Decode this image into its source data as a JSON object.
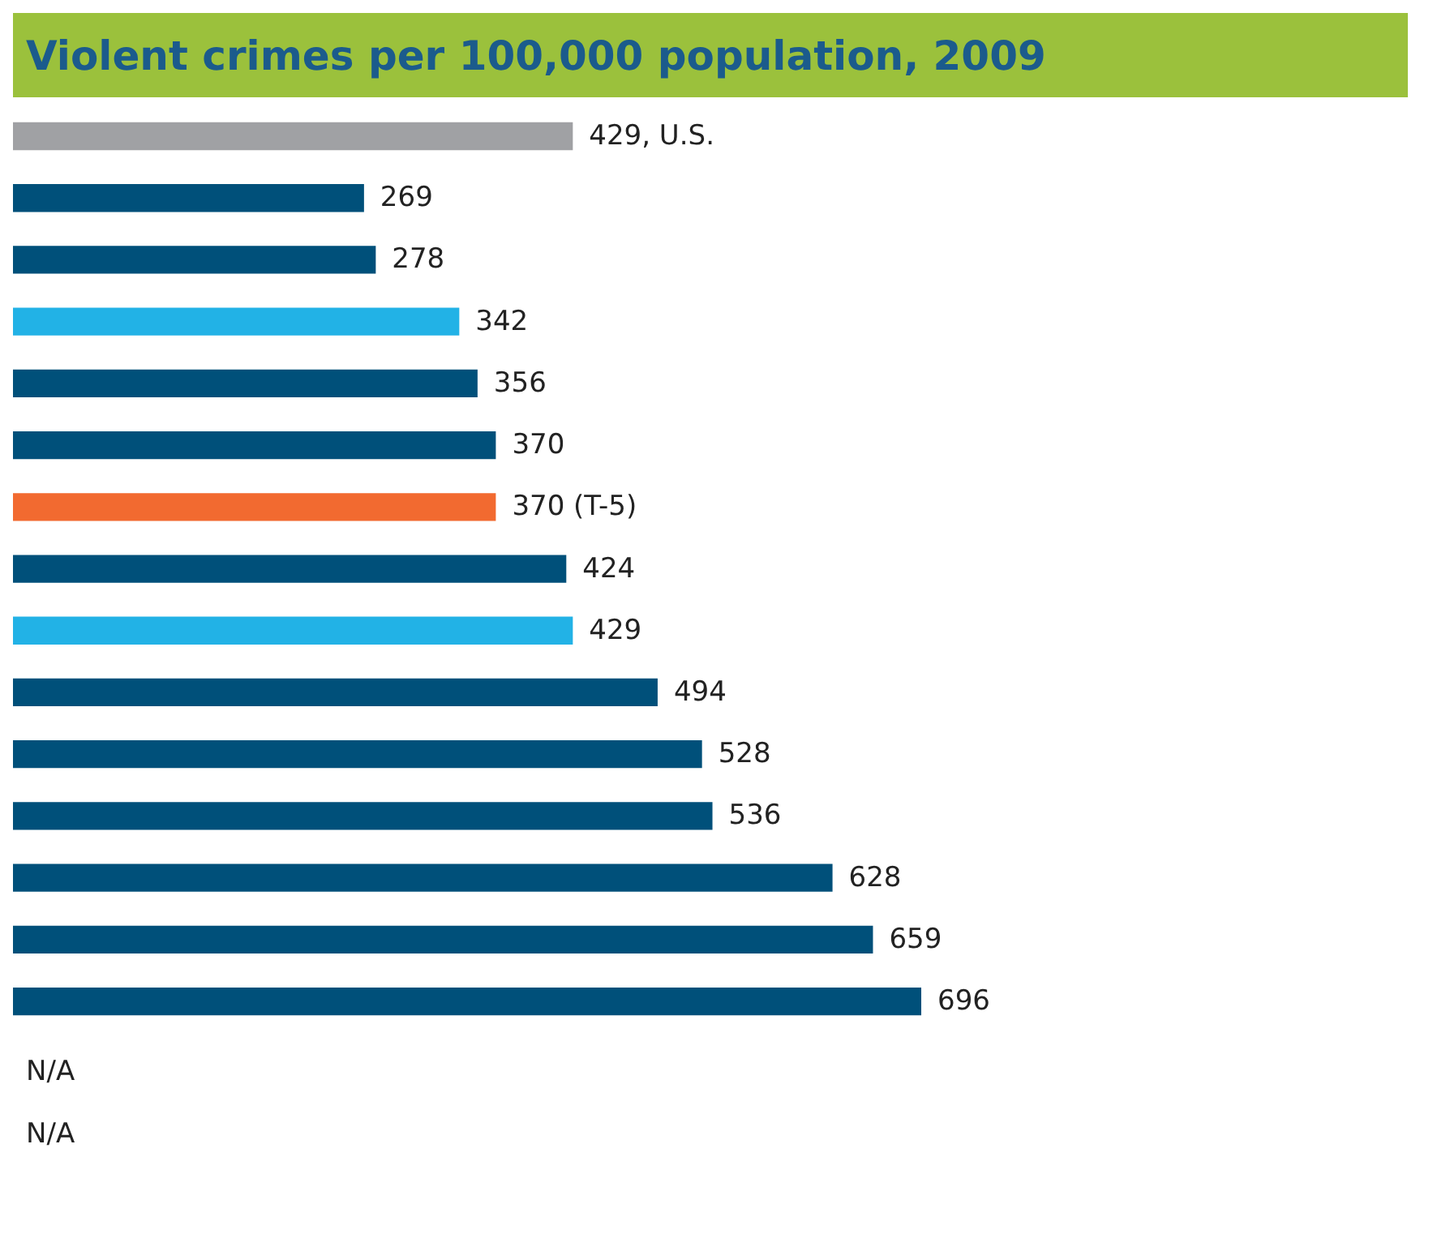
{
  "chart_data": {
    "type": "bar",
    "orientation": "horizontal",
    "title": "Violent crimes per 100,000 population, 2009",
    "categories": [
      null,
      null,
      null,
      null,
      null,
      null,
      null,
      null,
      null,
      null,
      null,
      null,
      null,
      null,
      null
    ],
    "values": [
      429,
      269,
      278,
      342,
      356,
      370,
      370,
      424,
      429,
      494,
      528,
      536,
      628,
      659,
      696
    ],
    "colors": [
      "#a0a1a4",
      "#00507a",
      "#00507a",
      "#22b2e6",
      "#00507a",
      "#00507a",
      "#f26a30",
      "#00507a",
      "#22b2e6",
      "#00507a",
      "#00507a",
      "#00507a",
      "#00507a",
      "#00507a",
      "#00507a"
    ],
    "value_labels": [
      "429,  U.S.",
      "269",
      "278",
      "342",
      "356",
      "370",
      "370  (T-5)",
      "424",
      "429",
      "494",
      "528",
      "536",
      "628",
      "659",
      "696"
    ],
    "annotations": [
      "N/A",
      "N/A"
    ],
    "tick_labels": false,
    "grid": false
  }
}
